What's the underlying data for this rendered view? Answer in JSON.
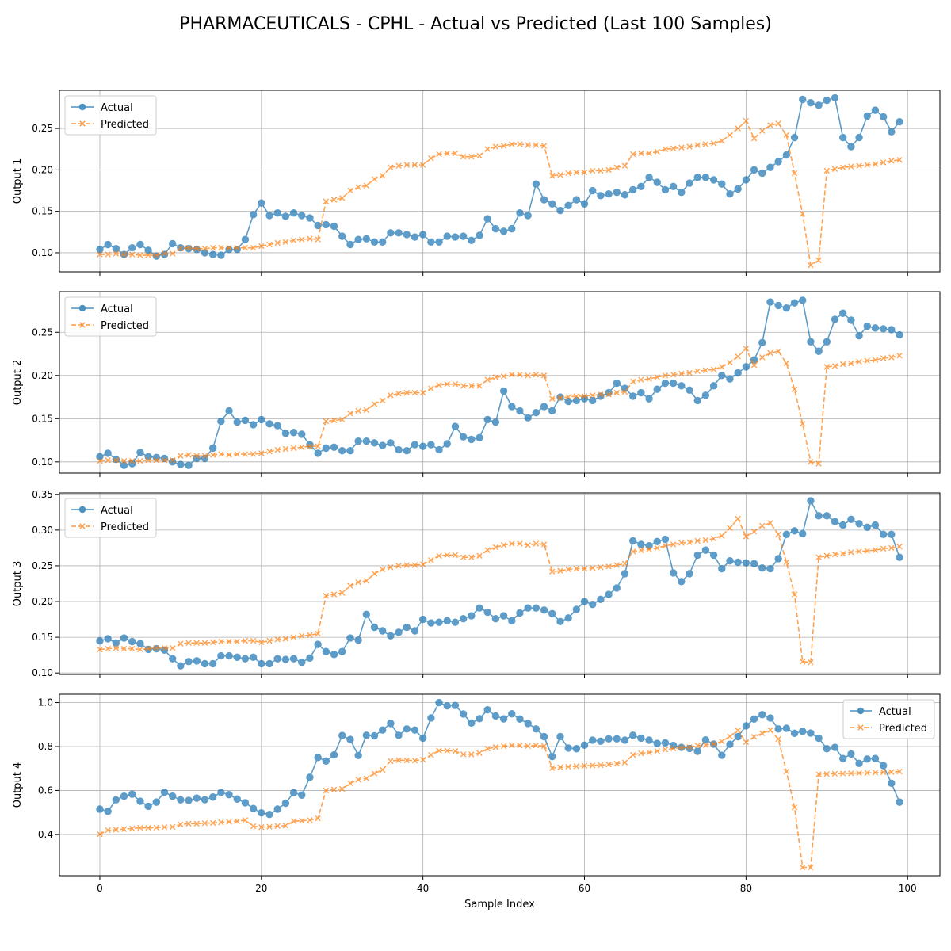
{
  "figure": {
    "title": "PHARMACEUTICALS - CPHL - Actual vs Predicted (Last 100 Samples)",
    "xlabel": "Sample Index"
  },
  "colors": {
    "actual": "#1f77b4",
    "predicted": "#ff7f0e",
    "grid": "#b0b0b0",
    "axis": "#000000"
  },
  "legend": {
    "actual_label": "Actual",
    "predicted_label": "Predicted"
  },
  "chart_data": [
    {
      "type": "line",
      "ylabel": "Output 1",
      "xlim": [
        -5,
        104
      ],
      "ylim": [
        0.077,
        0.296
      ],
      "xticks": [
        0,
        20,
        40,
        60,
        80,
        100
      ],
      "yticks": [
        0.1,
        0.15,
        0.2,
        0.25
      ],
      "yticks_labels": [
        "0.10",
        "0.15",
        "0.20",
        "0.25"
      ],
      "grid": true,
      "legend_position": "top-left",
      "series": [
        {
          "name": "Actual",
          "marker": "circle",
          "line": "solid",
          "values": [
            0.104,
            0.11,
            0.105,
            0.098,
            0.106,
            0.11,
            0.103,
            0.096,
            0.098,
            0.111,
            0.106,
            0.105,
            0.104,
            0.1,
            0.098,
            0.097,
            0.104,
            0.104,
            0.116,
            0.146,
            0.16,
            0.145,
            0.148,
            0.144,
            0.148,
            0.145,
            0.142,
            0.133,
            0.134,
            0.132,
            0.12,
            0.11,
            0.116,
            0.117,
            0.113,
            0.113,
            0.124,
            0.124,
            0.122,
            0.119,
            0.122,
            0.113,
            0.113,
            0.12,
            0.119,
            0.12,
            0.115,
            0.121,
            0.141,
            0.129,
            0.126,
            0.129,
            0.148,
            0.145,
            0.183,
            0.164,
            0.159,
            0.151,
            0.157,
            0.164,
            0.159,
            0.175,
            0.169,
            0.171,
            0.173,
            0.17,
            0.176,
            0.18,
            0.191,
            0.185,
            0.176,
            0.18,
            0.173,
            0.184,
            0.191,
            0.191,
            0.188,
            0.183,
            0.171,
            0.177,
            0.188,
            0.2,
            0.196,
            0.203,
            0.21,
            0.218,
            0.239,
            0.285,
            0.281,
            0.278,
            0.284,
            0.287,
            0.239,
            0.228,
            0.239,
            0.265,
            0.272,
            0.264,
            0.246,
            0.258
          ]
        },
        {
          "name": "Predicted",
          "marker": "x",
          "line": "dashed",
          "values": [
            0.098,
            0.098,
            0.099,
            0.098,
            0.098,
            0.097,
            0.097,
            0.097,
            0.099,
            0.099,
            0.105,
            0.106,
            0.105,
            0.105,
            0.106,
            0.106,
            0.106,
            0.106,
            0.106,
            0.106,
            0.108,
            0.11,
            0.112,
            0.113,
            0.115,
            0.116,
            0.117,
            0.116,
            0.162,
            0.164,
            0.166,
            0.175,
            0.179,
            0.181,
            0.189,
            0.193,
            0.203,
            0.205,
            0.206,
            0.206,
            0.206,
            0.214,
            0.219,
            0.22,
            0.22,
            0.216,
            0.216,
            0.217,
            0.225,
            0.228,
            0.229,
            0.231,
            0.231,
            0.23,
            0.23,
            0.229,
            0.193,
            0.194,
            0.196,
            0.197,
            0.197,
            0.199,
            0.199,
            0.2,
            0.203,
            0.205,
            0.219,
            0.22,
            0.22,
            0.222,
            0.225,
            0.226,
            0.227,
            0.228,
            0.23,
            0.231,
            0.232,
            0.235,
            0.242,
            0.25,
            0.259,
            0.238,
            0.247,
            0.254,
            0.256,
            0.242,
            0.196,
            0.147,
            0.085,
            0.091,
            0.199,
            0.201,
            0.203,
            0.204,
            0.205,
            0.206,
            0.207,
            0.209,
            0.211,
            0.212
          ]
        }
      ]
    },
    {
      "type": "line",
      "ylabel": "Output 2",
      "xlim": [
        -5,
        104
      ],
      "ylim": [
        0.087,
        0.297
      ],
      "xticks": [
        0,
        20,
        40,
        60,
        80,
        100
      ],
      "yticks": [
        0.1,
        0.15,
        0.2,
        0.25
      ],
      "yticks_labels": [
        "0.10",
        "0.15",
        "0.20",
        "0.25"
      ],
      "grid": true,
      "legend_position": "top-left",
      "series": [
        {
          "name": "Actual",
          "marker": "circle",
          "line": "solid",
          "values": [
            0.106,
            0.11,
            0.103,
            0.096,
            0.098,
            0.111,
            0.106,
            0.105,
            0.104,
            0.1,
            0.097,
            0.096,
            0.104,
            0.104,
            0.116,
            0.147,
            0.159,
            0.146,
            0.148,
            0.143,
            0.149,
            0.144,
            0.142,
            0.133,
            0.134,
            0.132,
            0.12,
            0.11,
            0.116,
            0.117,
            0.113,
            0.113,
            0.124,
            0.124,
            0.122,
            0.119,
            0.122,
            0.114,
            0.113,
            0.12,
            0.118,
            0.12,
            0.114,
            0.121,
            0.141,
            0.129,
            0.126,
            0.128,
            0.149,
            0.146,
            0.182,
            0.164,
            0.159,
            0.151,
            0.157,
            0.164,
            0.159,
            0.175,
            0.17,
            0.171,
            0.173,
            0.171,
            0.176,
            0.18,
            0.191,
            0.185,
            0.176,
            0.18,
            0.173,
            0.184,
            0.191,
            0.191,
            0.188,
            0.183,
            0.171,
            0.177,
            0.188,
            0.2,
            0.196,
            0.203,
            0.21,
            0.218,
            0.238,
            0.285,
            0.281,
            0.278,
            0.284,
            0.287,
            0.239,
            0.228,
            0.239,
            0.265,
            0.272,
            0.264,
            0.246,
            0.257,
            0.255,
            0.254,
            0.253,
            0.247
          ]
        },
        {
          "name": "Predicted",
          "marker": "x",
          "line": "dashed",
          "values": [
            0.101,
            0.102,
            0.102,
            0.101,
            0.101,
            0.101,
            0.102,
            0.102,
            0.102,
            0.102,
            0.107,
            0.108,
            0.107,
            0.107,
            0.108,
            0.109,
            0.108,
            0.109,
            0.109,
            0.109,
            0.11,
            0.112,
            0.114,
            0.115,
            0.116,
            0.117,
            0.118,
            0.118,
            0.147,
            0.148,
            0.149,
            0.156,
            0.159,
            0.16,
            0.167,
            0.171,
            0.177,
            0.179,
            0.18,
            0.18,
            0.18,
            0.185,
            0.189,
            0.19,
            0.19,
            0.188,
            0.188,
            0.188,
            0.195,
            0.198,
            0.199,
            0.201,
            0.201,
            0.2,
            0.201,
            0.2,
            0.173,
            0.174,
            0.175,
            0.176,
            0.176,
            0.177,
            0.178,
            0.178,
            0.18,
            0.181,
            0.193,
            0.195,
            0.196,
            0.198,
            0.2,
            0.201,
            0.202,
            0.203,
            0.205,
            0.206,
            0.207,
            0.21,
            0.215,
            0.222,
            0.231,
            0.212,
            0.221,
            0.226,
            0.228,
            0.214,
            0.184,
            0.144,
            0.1,
            0.098,
            0.21,
            0.211,
            0.213,
            0.214,
            0.216,
            0.217,
            0.218,
            0.22,
            0.221,
            0.223
          ]
        }
      ]
    },
    {
      "type": "line",
      "ylabel": "Output 3",
      "xlim": [
        -5,
        104
      ],
      "ylim": [
        0.098,
        0.352
      ],
      "xticks": [
        0,
        20,
        40,
        60,
        80,
        100
      ],
      "yticks": [
        0.1,
        0.15,
        0.2,
        0.25,
        0.3,
        0.35
      ],
      "yticks_labels": [
        "0.10",
        "0.15",
        "0.20",
        "0.25",
        "0.30",
        "0.35"
      ],
      "grid": true,
      "legend_position": "top-left",
      "series": [
        {
          "name": "Actual",
          "marker": "circle",
          "line": "solid",
          "values": [
            0.145,
            0.148,
            0.142,
            0.149,
            0.144,
            0.141,
            0.133,
            0.134,
            0.132,
            0.12,
            0.11,
            0.116,
            0.117,
            0.113,
            0.113,
            0.124,
            0.124,
            0.122,
            0.12,
            0.122,
            0.113,
            0.113,
            0.12,
            0.119,
            0.12,
            0.115,
            0.121,
            0.14,
            0.13,
            0.126,
            0.13,
            0.149,
            0.146,
            0.182,
            0.164,
            0.159,
            0.152,
            0.157,
            0.164,
            0.159,
            0.175,
            0.17,
            0.171,
            0.173,
            0.171,
            0.176,
            0.18,
            0.191,
            0.185,
            0.176,
            0.18,
            0.173,
            0.184,
            0.191,
            0.191,
            0.188,
            0.183,
            0.172,
            0.177,
            0.189,
            0.2,
            0.196,
            0.203,
            0.21,
            0.219,
            0.239,
            0.285,
            0.28,
            0.278,
            0.284,
            0.287,
            0.24,
            0.228,
            0.239,
            0.265,
            0.272,
            0.265,
            0.246,
            0.257,
            0.255,
            0.254,
            0.253,
            0.247,
            0.246,
            0.26,
            0.294,
            0.299,
            0.295,
            0.341,
            0.32,
            0.32,
            0.312,
            0.307,
            0.315,
            0.309,
            0.304,
            0.307,
            0.294,
            0.294,
            0.262
          ]
        },
        {
          "name": "Predicted",
          "marker": "x",
          "line": "dashed",
          "values": [
            0.133,
            0.134,
            0.135,
            0.134,
            0.134,
            0.133,
            0.134,
            0.135,
            0.135,
            0.135,
            0.141,
            0.142,
            0.142,
            0.142,
            0.143,
            0.144,
            0.144,
            0.144,
            0.145,
            0.145,
            0.143,
            0.145,
            0.147,
            0.148,
            0.15,
            0.152,
            0.153,
            0.155,
            0.208,
            0.21,
            0.212,
            0.222,
            0.227,
            0.229,
            0.239,
            0.245,
            0.248,
            0.25,
            0.251,
            0.251,
            0.252,
            0.258,
            0.264,
            0.265,
            0.265,
            0.262,
            0.262,
            0.264,
            0.272,
            0.276,
            0.279,
            0.281,
            0.281,
            0.279,
            0.281,
            0.28,
            0.242,
            0.243,
            0.245,
            0.246,
            0.246,
            0.247,
            0.248,
            0.249,
            0.251,
            0.253,
            0.27,
            0.272,
            0.273,
            0.275,
            0.278,
            0.28,
            0.282,
            0.283,
            0.285,
            0.286,
            0.288,
            0.292,
            0.303,
            0.316,
            0.291,
            0.298,
            0.306,
            0.31,
            0.294,
            0.255,
            0.21,
            0.116,
            0.115,
            0.262,
            0.264,
            0.266,
            0.267,
            0.269,
            0.27,
            0.271,
            0.272,
            0.274,
            0.275,
            0.277
          ]
        }
      ]
    },
    {
      "type": "line",
      "ylabel": "Output 4",
      "xlim": [
        -5,
        104
      ],
      "ylim": [
        0.212,
        1.038
      ],
      "xticks": [
        0,
        20,
        40,
        60,
        80,
        100
      ],
      "xticks_labels": [
        "0",
        "20",
        "40",
        "60",
        "80",
        "100"
      ],
      "yticks": [
        0.4,
        0.6,
        0.8,
        1.0
      ],
      "yticks_labels": [
        "0.4",
        "0.6",
        "0.8",
        "1.0"
      ],
      "grid": true,
      "legend_position": "top-right",
      "series": [
        {
          "name": "Actual",
          "marker": "circle",
          "line": "solid",
          "values": [
            0.515,
            0.505,
            0.557,
            0.574,
            0.583,
            0.551,
            0.528,
            0.547,
            0.592,
            0.574,
            0.557,
            0.555,
            0.565,
            0.558,
            0.57,
            0.591,
            0.581,
            0.561,
            0.544,
            0.518,
            0.498,
            0.491,
            0.515,
            0.542,
            0.59,
            0.579,
            0.66,
            0.75,
            0.734,
            0.762,
            0.85,
            0.832,
            0.759,
            0.851,
            0.849,
            0.875,
            0.905,
            0.851,
            0.88,
            0.875,
            0.838,
            0.93,
            1.0,
            0.985,
            0.987,
            0.948,
            0.907,
            0.927,
            0.967,
            0.939,
            0.926,
            0.949,
            0.925,
            0.905,
            0.88,
            0.845,
            0.754,
            0.845,
            0.793,
            0.79,
            0.806,
            0.829,
            0.824,
            0.835,
            0.835,
            0.829,
            0.851,
            0.838,
            0.829,
            0.814,
            0.817,
            0.805,
            0.796,
            0.791,
            0.778,
            0.83,
            0.811,
            0.76,
            0.81,
            0.845,
            0.894,
            0.925,
            0.945,
            0.93,
            0.88,
            0.883,
            0.86,
            0.869,
            0.861,
            0.838,
            0.79,
            0.796,
            0.745,
            0.766,
            0.723,
            0.743,
            0.745,
            0.713,
            0.633,
            0.547
          ]
        },
        {
          "name": "Predicted",
          "marker": "x",
          "line": "dashed",
          "values": [
            0.401,
            0.419,
            0.422,
            0.424,
            0.427,
            0.43,
            0.43,
            0.431,
            0.433,
            0.434,
            0.445,
            0.449,
            0.449,
            0.451,
            0.452,
            0.455,
            0.457,
            0.46,
            0.465,
            0.437,
            0.433,
            0.435,
            0.438,
            0.44,
            0.46,
            0.462,
            0.465,
            0.473,
            0.6,
            0.604,
            0.607,
            0.633,
            0.649,
            0.655,
            0.677,
            0.694,
            0.734,
            0.738,
            0.737,
            0.736,
            0.74,
            0.762,
            0.781,
            0.781,
            0.779,
            0.764,
            0.764,
            0.77,
            0.79,
            0.797,
            0.802,
            0.805,
            0.805,
            0.802,
            0.805,
            0.802,
            0.702,
            0.705,
            0.708,
            0.71,
            0.712,
            0.714,
            0.715,
            0.718,
            0.722,
            0.727,
            0.762,
            0.769,
            0.773,
            0.779,
            0.786,
            0.791,
            0.795,
            0.797,
            0.804,
            0.807,
            0.812,
            0.823,
            0.846,
            0.873,
            0.82,
            0.844,
            0.86,
            0.875,
            0.834,
            0.686,
            0.523,
            0.25,
            0.25,
            0.673,
            0.675,
            0.676,
            0.677,
            0.678,
            0.679,
            0.68,
            0.681,
            0.683,
            0.684,
            0.686
          ]
        }
      ]
    }
  ]
}
